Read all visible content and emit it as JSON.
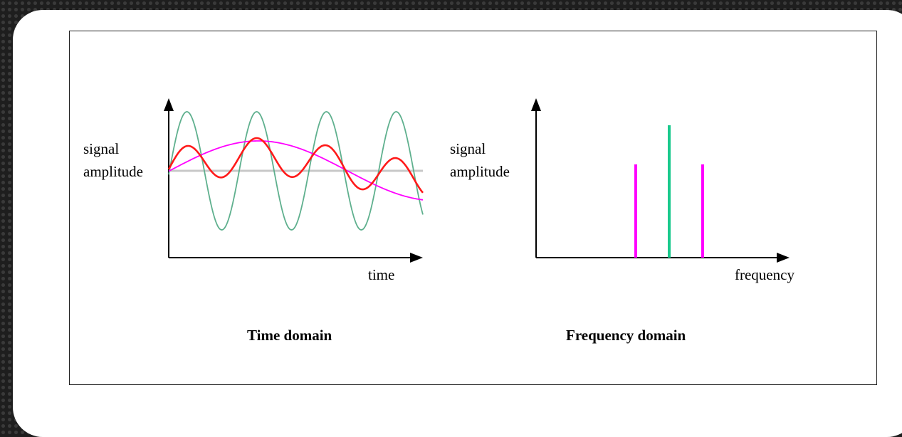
{
  "time_panel": {
    "title": "Time domain",
    "ylabel_line1": "signal",
    "ylabel_line2": "amplitude",
    "xlabel": "time"
  },
  "frequency_panel": {
    "title": "Frequency domain",
    "ylabel_line1": "signal",
    "ylabel_line2": "amplitude",
    "xlabel": "frequency"
  },
  "colors": {
    "high_frequency": "#5fb08e",
    "low_frequency": "#ff00ff",
    "sum": "#ff1a1a",
    "baseline": "#c8c8c8",
    "spike_center": "#19c98c",
    "spike_side": "#ff00ff"
  }
}
